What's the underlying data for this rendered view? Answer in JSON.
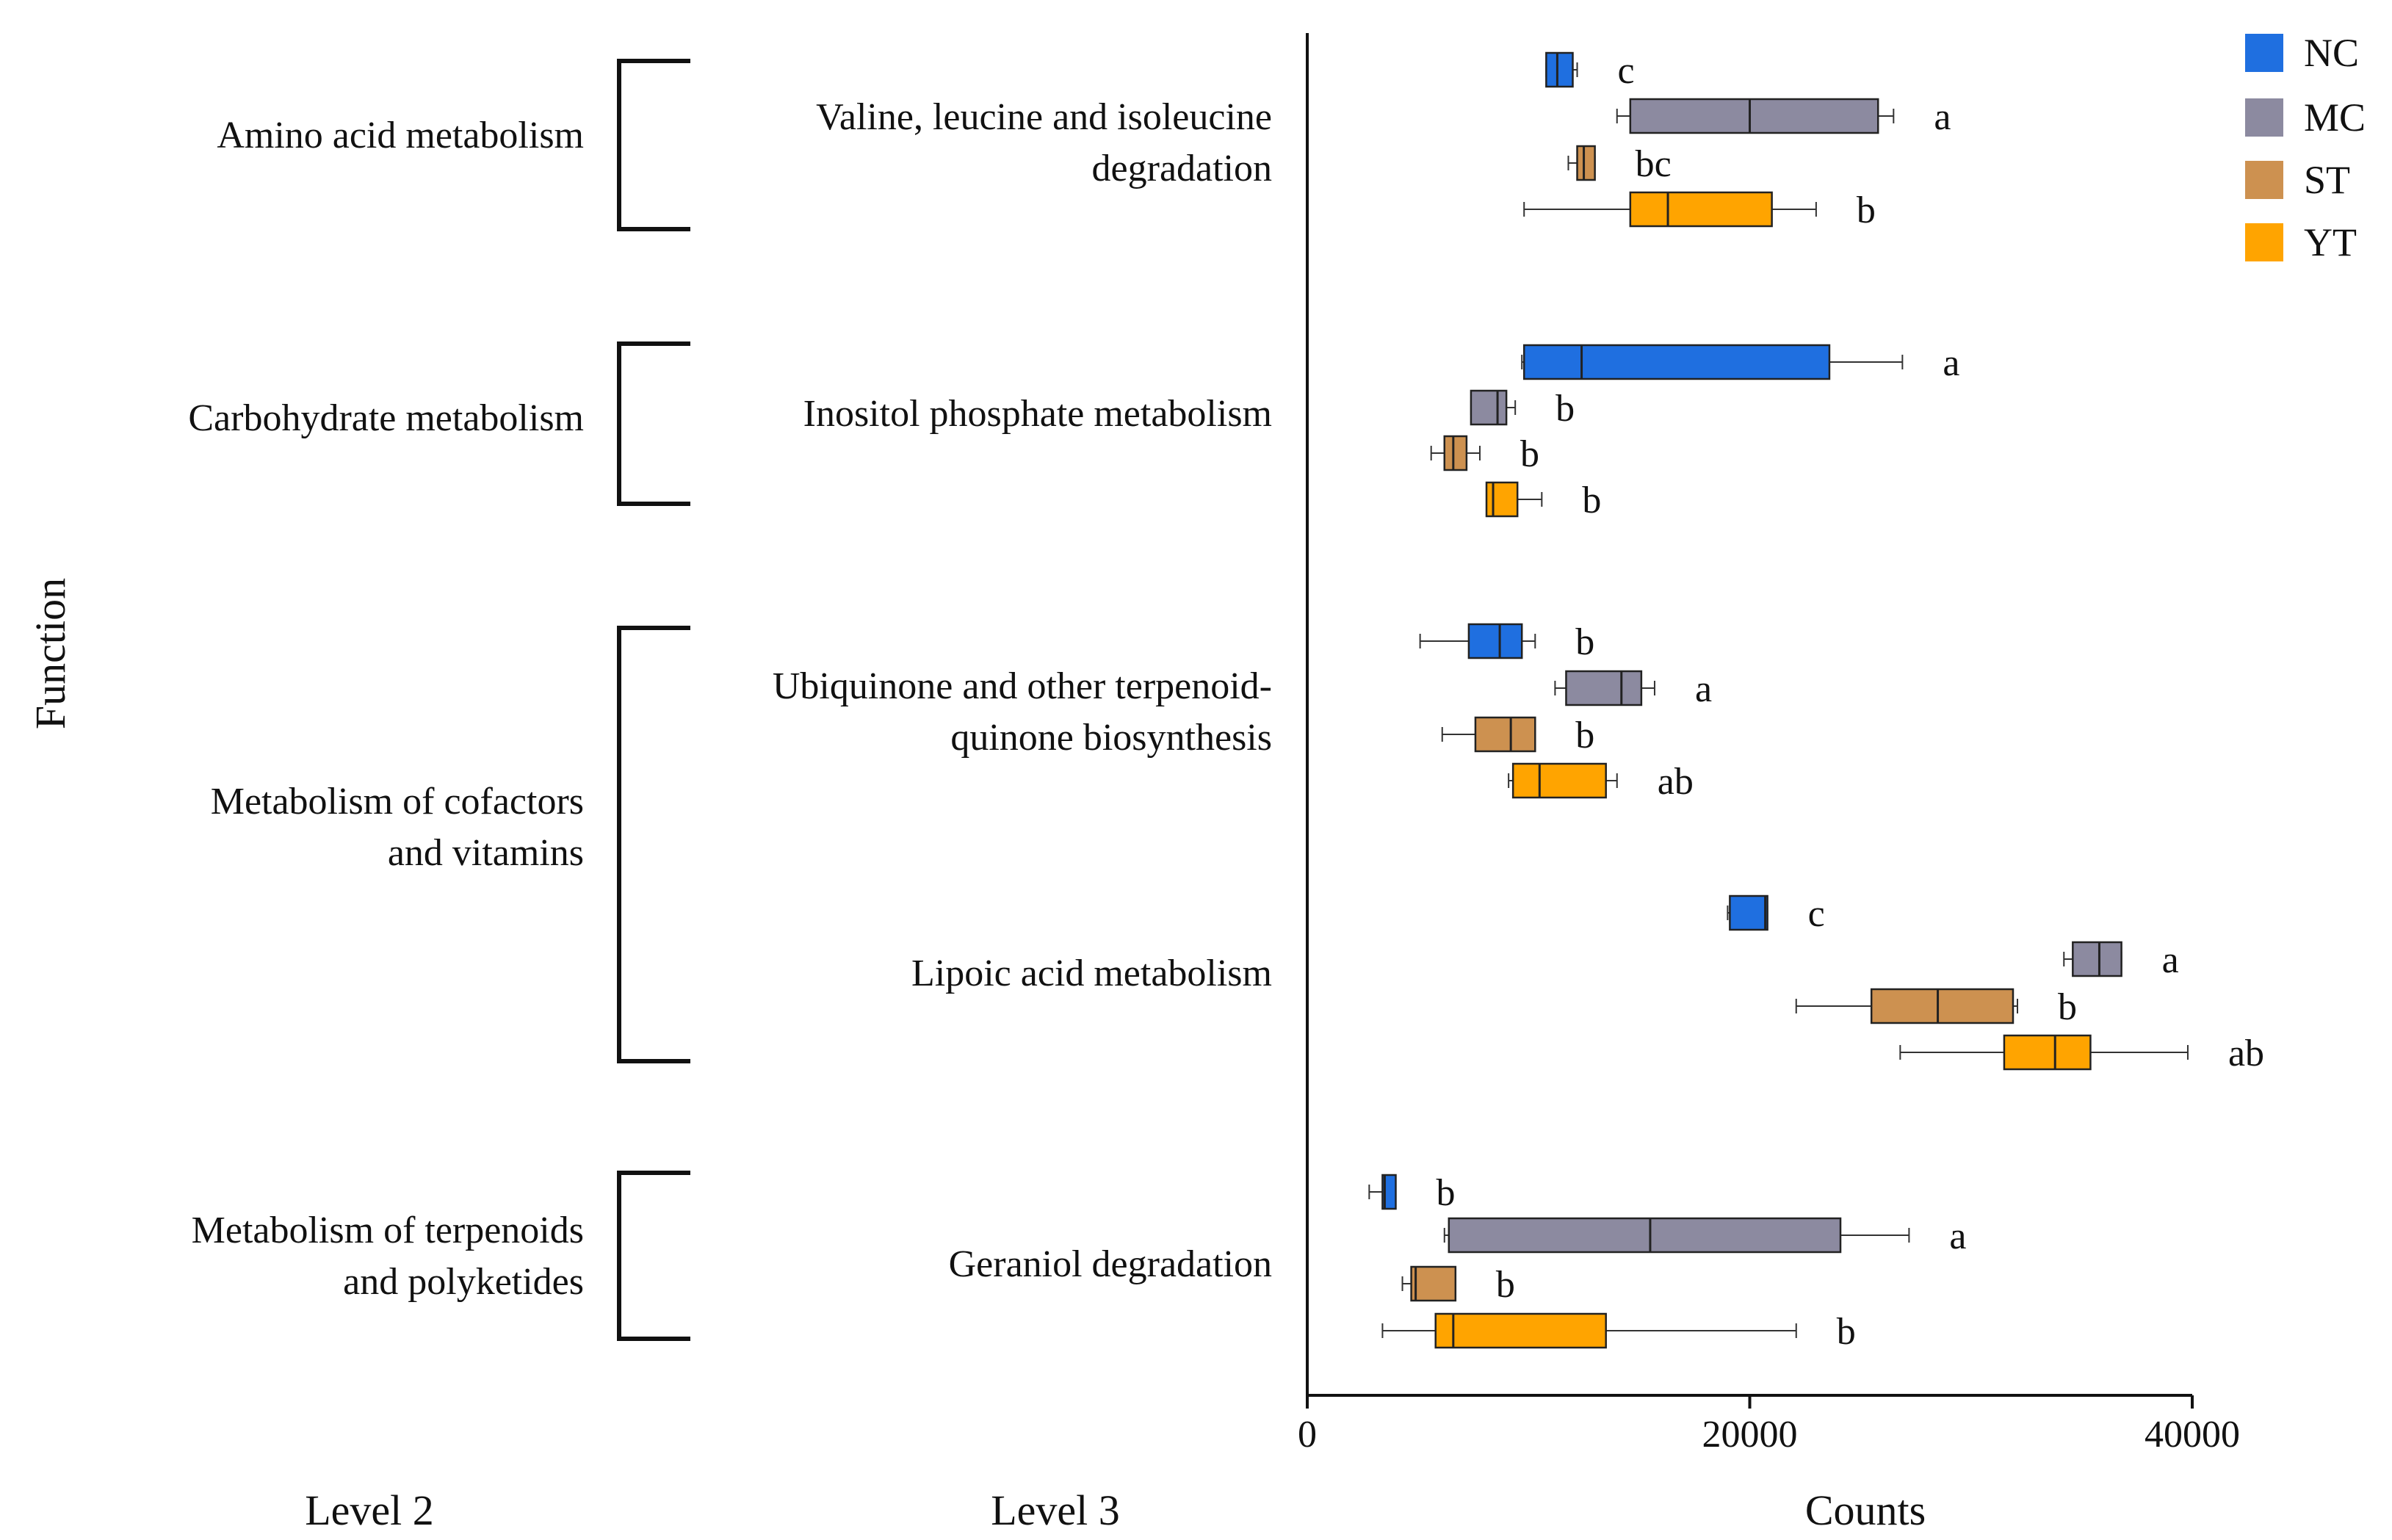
{
  "chart_data": {
    "type": "boxplot",
    "orientation": "horizontal",
    "xlabel": "Counts",
    "ylabel": "Function",
    "xlim": [
      0,
      40000
    ],
    "xticks": [
      0,
      20000,
      40000
    ],
    "xtick_labels": [
      "0",
      "20000",
      "40000"
    ],
    "level_labels": {
      "level2": "Level 2",
      "level3": "Level 3"
    },
    "legend": {
      "placement": "top-right",
      "items": [
        {
          "name": "NC",
          "color": "#1f6fe0"
        },
        {
          "name": "MC",
          "color": "#8c8aa0"
        },
        {
          "name": "ST",
          "color": "#cd9150"
        },
        {
          "name": "YT",
          "color": "#ffa400"
        }
      ]
    },
    "level2_groups": [
      {
        "lines": [
          "Amino acid metabolism"
        ],
        "level3": [
          0
        ]
      },
      {
        "lines": [
          "Carbohydrate metabolism"
        ],
        "level3": [
          1
        ]
      },
      {
        "lines": [
          "Metabolism of cofactors",
          "and vitamins"
        ],
        "level3": [
          2,
          3
        ]
      },
      {
        "lines": [
          "Metabolism of terpenoids",
          "and polyketides"
        ],
        "level3": [
          4
        ]
      }
    ],
    "level3_pathways": [
      {
        "lines": [
          "Valine, leucine and isoleucine",
          "degradation"
        ],
        "boxes": [
          {
            "group": "NC",
            "min": 10800,
            "q1": 10800,
            "median": 11300,
            "q3": 12000,
            "max": 12200,
            "letter": "c"
          },
          {
            "group": "MC",
            "min": 14000,
            "q1": 14600,
            "median": 20000,
            "q3": 25800,
            "max": 26500,
            "letter": "a"
          },
          {
            "group": "ST",
            "min": 11800,
            "q1": 12200,
            "median": 12500,
            "q3": 13000,
            "max": 13000,
            "letter": "bc"
          },
          {
            "group": "YT",
            "min": 9800,
            "q1": 14600,
            "median": 16300,
            "q3": 21000,
            "max": 23000,
            "letter": "b"
          }
        ]
      },
      {
        "lines": [
          "Inositol phosphate metabolism"
        ],
        "boxes": [
          {
            "group": "NC",
            "min": 9700,
            "q1": 9800,
            "median": 12400,
            "q3": 23600,
            "max": 26900,
            "letter": "a"
          },
          {
            "group": "MC",
            "min": 7400,
            "q1": 7400,
            "median": 8600,
            "q3": 9000,
            "max": 9400,
            "letter": "b"
          },
          {
            "group": "ST",
            "min": 5600,
            "q1": 6200,
            "median": 6600,
            "q3": 7200,
            "max": 7800,
            "letter": "b"
          },
          {
            "group": "YT",
            "min": 8100,
            "q1": 8100,
            "median": 8400,
            "q3": 9500,
            "max": 10600,
            "letter": "b"
          }
        ]
      },
      {
        "lines": [
          "Ubiquinone and other terpenoid-",
          "quinone biosynthesis"
        ],
        "boxes": [
          {
            "group": "NC",
            "min": 5100,
            "q1": 7300,
            "median": 8700,
            "q3": 9700,
            "max": 10300,
            "letter": "b"
          },
          {
            "group": "MC",
            "min": 11200,
            "q1": 11700,
            "median": 14200,
            "q3": 15100,
            "max": 15700,
            "letter": "a"
          },
          {
            "group": "ST",
            "min": 6100,
            "q1": 7600,
            "median": 9200,
            "q3": 10300,
            "max": 10300,
            "letter": "b"
          },
          {
            "group": "YT",
            "min": 9100,
            "q1": 9300,
            "median": 10500,
            "q3": 13500,
            "max": 14000,
            "letter": "ab"
          }
        ]
      },
      {
        "lines": [
          "Lipoic acid metabolism"
        ],
        "boxes": [
          {
            "group": "NC",
            "min": 19000,
            "q1": 19100,
            "median": 20700,
            "q3": 20800,
            "max": 20800,
            "letter": "c"
          },
          {
            "group": "MC",
            "min": 34200,
            "q1": 34600,
            "median": 35800,
            "q3": 36800,
            "max": 36800,
            "letter": "a"
          },
          {
            "group": "ST",
            "min": 22100,
            "q1": 25500,
            "median": 28500,
            "q3": 31900,
            "max": 32100,
            "letter": "b"
          },
          {
            "group": "YT",
            "min": 26800,
            "q1": 31500,
            "median": 33800,
            "q3": 35400,
            "max": 39800,
            "letter": "ab"
          }
        ]
      },
      {
        "lines": [
          "Geraniol degradation"
        ],
        "boxes": [
          {
            "group": "NC",
            "min": 2800,
            "q1": 3400,
            "median": 3500,
            "q3": 4000,
            "max": 4000,
            "letter": "b"
          },
          {
            "group": "MC",
            "min": 6200,
            "q1": 6400,
            "median": 15500,
            "q3": 24100,
            "max": 27200,
            "letter": "a"
          },
          {
            "group": "ST",
            "min": 4300,
            "q1": 4700,
            "median": 4900,
            "q3": 6700,
            "max": 6700,
            "letter": "b"
          },
          {
            "group": "YT",
            "min": 3400,
            "q1": 5800,
            "median": 6600,
            "q3": 13500,
            "max": 22100,
            "letter": "b"
          }
        ]
      }
    ]
  }
}
